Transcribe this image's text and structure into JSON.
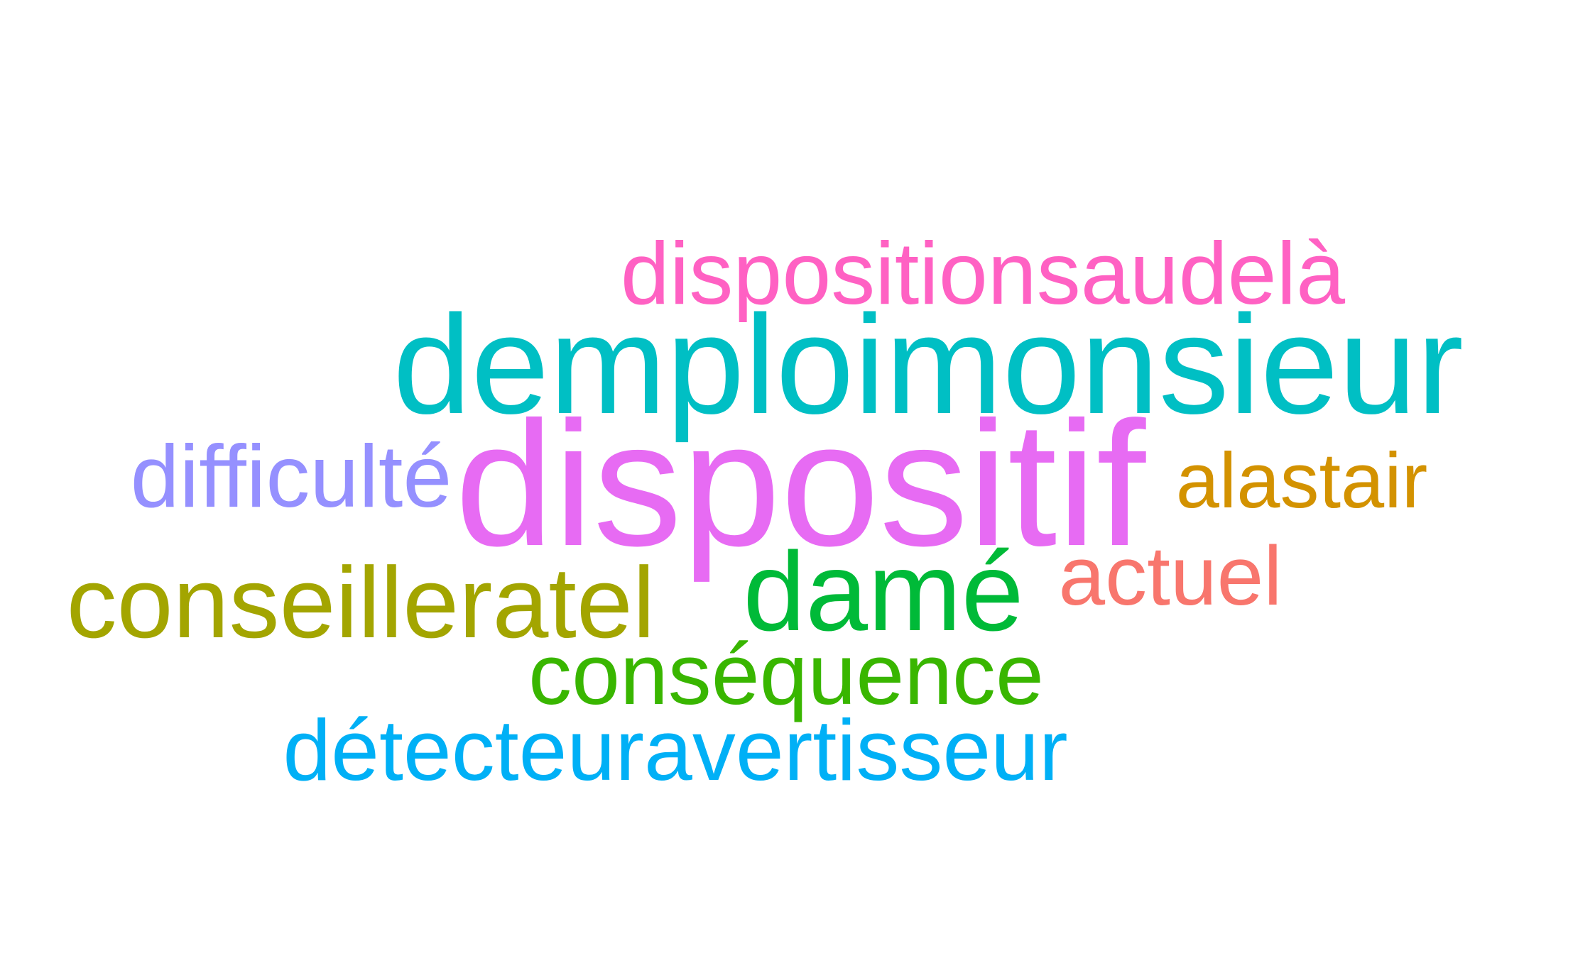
{
  "words": [
    {
      "text": "dispositionsaudelà",
      "color": "#ff61c3",
      "weight": 3
    },
    {
      "text": "demploimonsieur",
      "color": "#00bfc4",
      "weight": 5
    },
    {
      "text": "difficulté",
      "color": "#9590ff",
      "weight": 3
    },
    {
      "text": "dispositif",
      "color": "#e76bf3",
      "weight": 7
    },
    {
      "text": "alastair",
      "color": "#d39200",
      "weight": 3
    },
    {
      "text": "conseilleratel",
      "color": "#a3a500",
      "weight": 4
    },
    {
      "text": "damé",
      "color": "#00ba38",
      "weight": 4
    },
    {
      "text": "actuel",
      "color": "#f8766d",
      "weight": 3
    },
    {
      "text": "conséquence",
      "color": "#39b600",
      "weight": 3
    },
    {
      "text": "détecteuravertisseur",
      "color": "#00b0f6",
      "weight": 3
    }
  ]
}
